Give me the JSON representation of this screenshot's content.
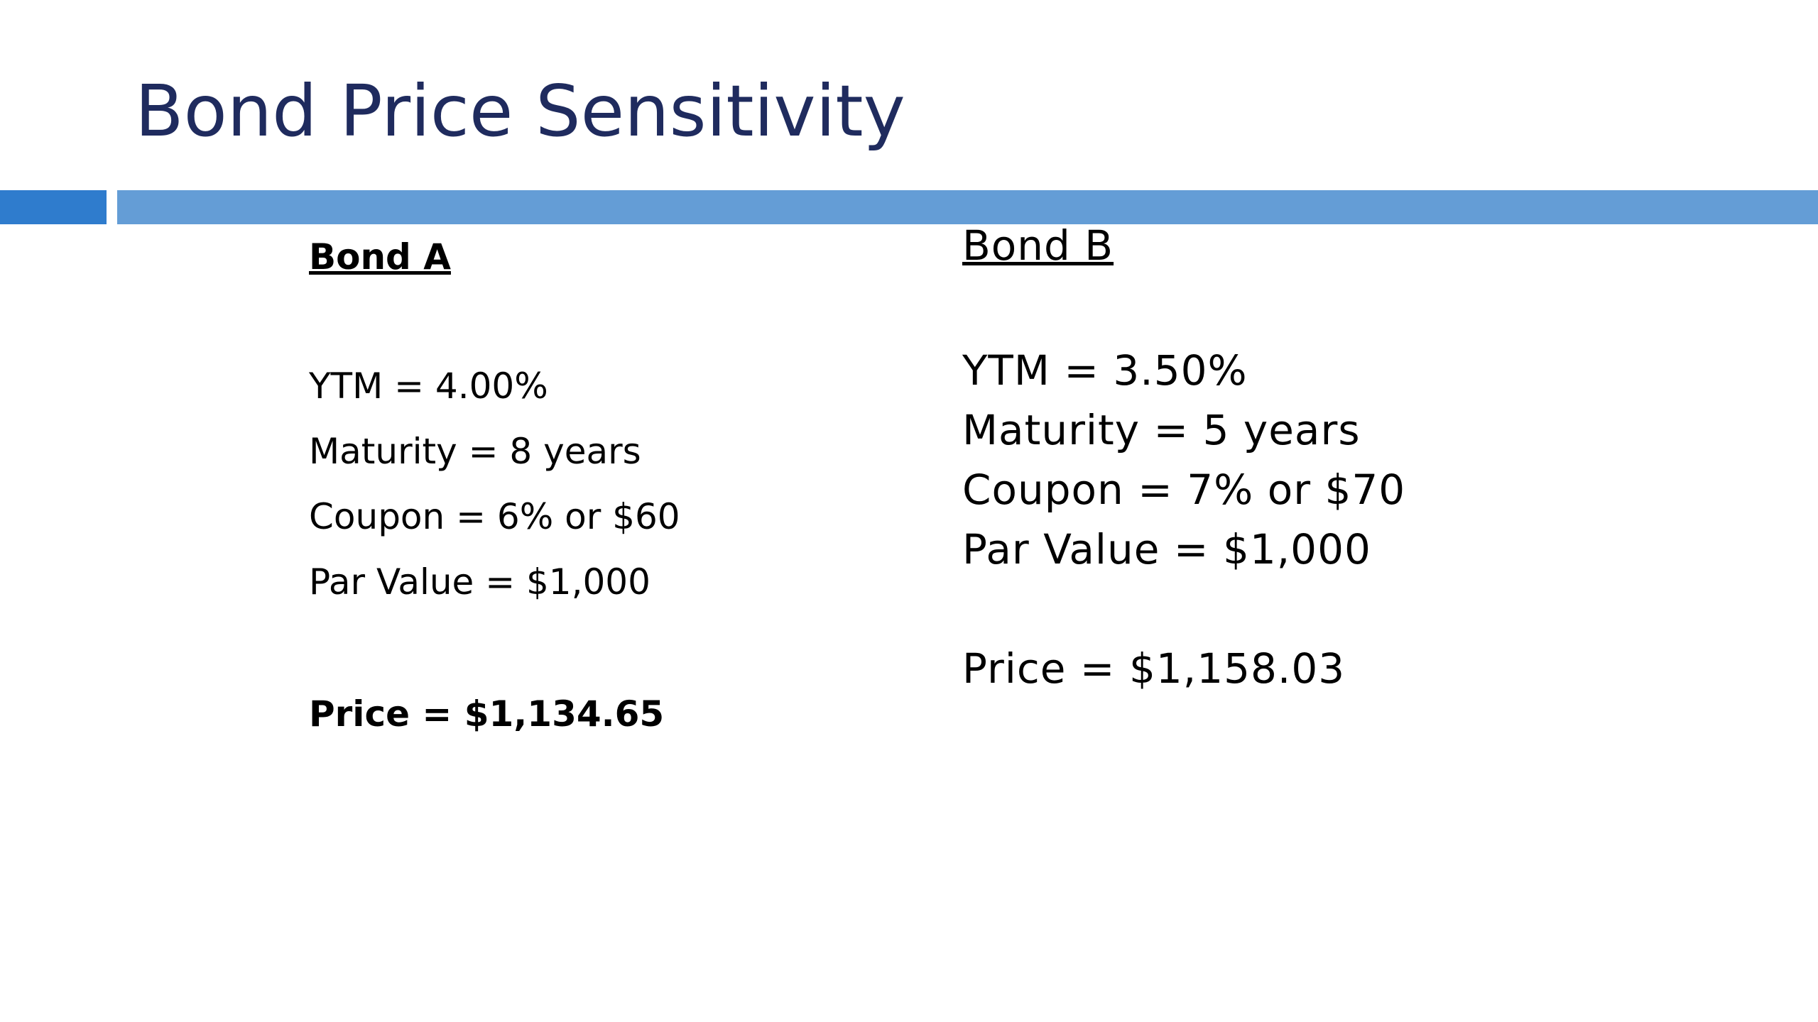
{
  "slide": {
    "title": "Bond Price Sensitivity",
    "colors": {
      "title": "#1f2b5e",
      "accent_bar_left": "#2f7ccd",
      "accent_bar_main": "#649dd6",
      "text": "#000000"
    }
  },
  "bond_a": {
    "heading": "Bond A",
    "lines": [
      "YTM = 4.00%",
      "Maturity = 8 years",
      "Coupon = 6% or $60",
      "Par Value = $1,000"
    ],
    "price": "Price = $1,134.65"
  },
  "bond_b": {
    "heading": "Bond B",
    "lines": [
      "YTM = 3.50%",
      "Maturity = 5 years",
      "Coupon = 7% or $70",
      "Par Value = $1,000"
    ],
    "price": "Price = $1,158.03"
  }
}
